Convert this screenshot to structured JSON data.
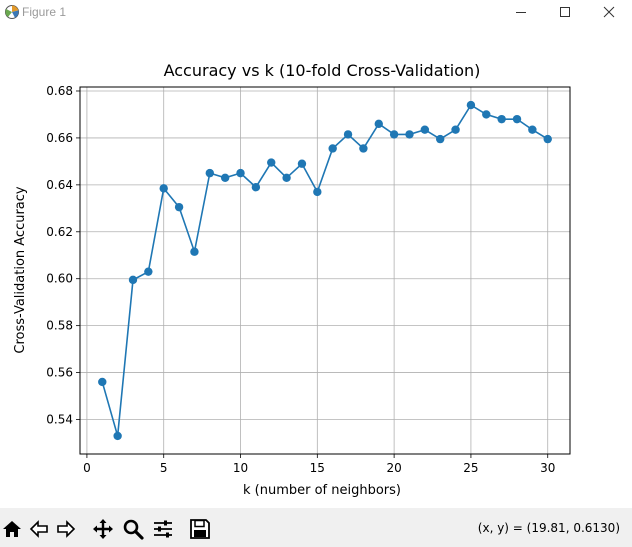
{
  "window": {
    "title": "Figure 1",
    "icon": "matplotlib-figure-icon",
    "controls": [
      "minimize-icon",
      "maximize-icon",
      "close-icon"
    ]
  },
  "toolbar": {
    "buttons": [
      "home-icon",
      "back-arrow-icon",
      "forward-arrow-icon",
      "pan-move-icon",
      "zoom-magnifier-icon",
      "configure-subplots-icon",
      "save-floppy-icon"
    ],
    "coords_text": "(x, y) = (19.81, 0.6130)"
  },
  "colors": {
    "series": "#1f77b4",
    "grid": "#b0b0b0",
    "toolbar_bg": "#f0f0f0"
  },
  "chart_data": {
    "type": "line",
    "title": "Accuracy vs k (10-fold Cross-Validation)",
    "xlabel": "k (number of neighbors)",
    "ylabel": "Cross-Validation Accuracy",
    "xlim": [
      -0.45,
      31.45
    ],
    "ylim": [
      0.5253,
      0.6817
    ],
    "xticks": [
      0,
      5,
      10,
      15,
      20,
      25,
      30
    ],
    "xtick_labels": [
      "0",
      "5",
      "10",
      "15",
      "20",
      "25",
      "30"
    ],
    "yticks": [
      0.54,
      0.56,
      0.58,
      0.6,
      0.62,
      0.64,
      0.66,
      0.68
    ],
    "ytick_labels": [
      "0.54",
      "0.56",
      "0.58",
      "0.60",
      "0.62",
      "0.64",
      "0.66",
      "0.68"
    ],
    "grid": true,
    "marker": "circle",
    "series": [
      {
        "x": [
          1,
          2,
          3,
          4,
          5,
          6,
          7,
          8,
          9,
          10,
          11,
          12,
          13,
          14,
          15,
          16,
          17,
          18,
          19,
          20,
          21,
          22,
          23,
          24,
          25,
          26,
          27,
          28,
          29,
          30
        ],
        "values": [
          0.556,
          0.533,
          0.5995,
          0.603,
          0.6385,
          0.6305,
          0.6115,
          0.645,
          0.643,
          0.645,
          0.639,
          0.6495,
          0.643,
          0.649,
          0.637,
          0.6555,
          0.6615,
          0.6555,
          0.666,
          0.6615,
          0.6615,
          0.6635,
          0.6595,
          0.6635,
          0.674,
          0.67,
          0.668,
          0.668,
          0.6635,
          0.6595
        ]
      }
    ]
  }
}
